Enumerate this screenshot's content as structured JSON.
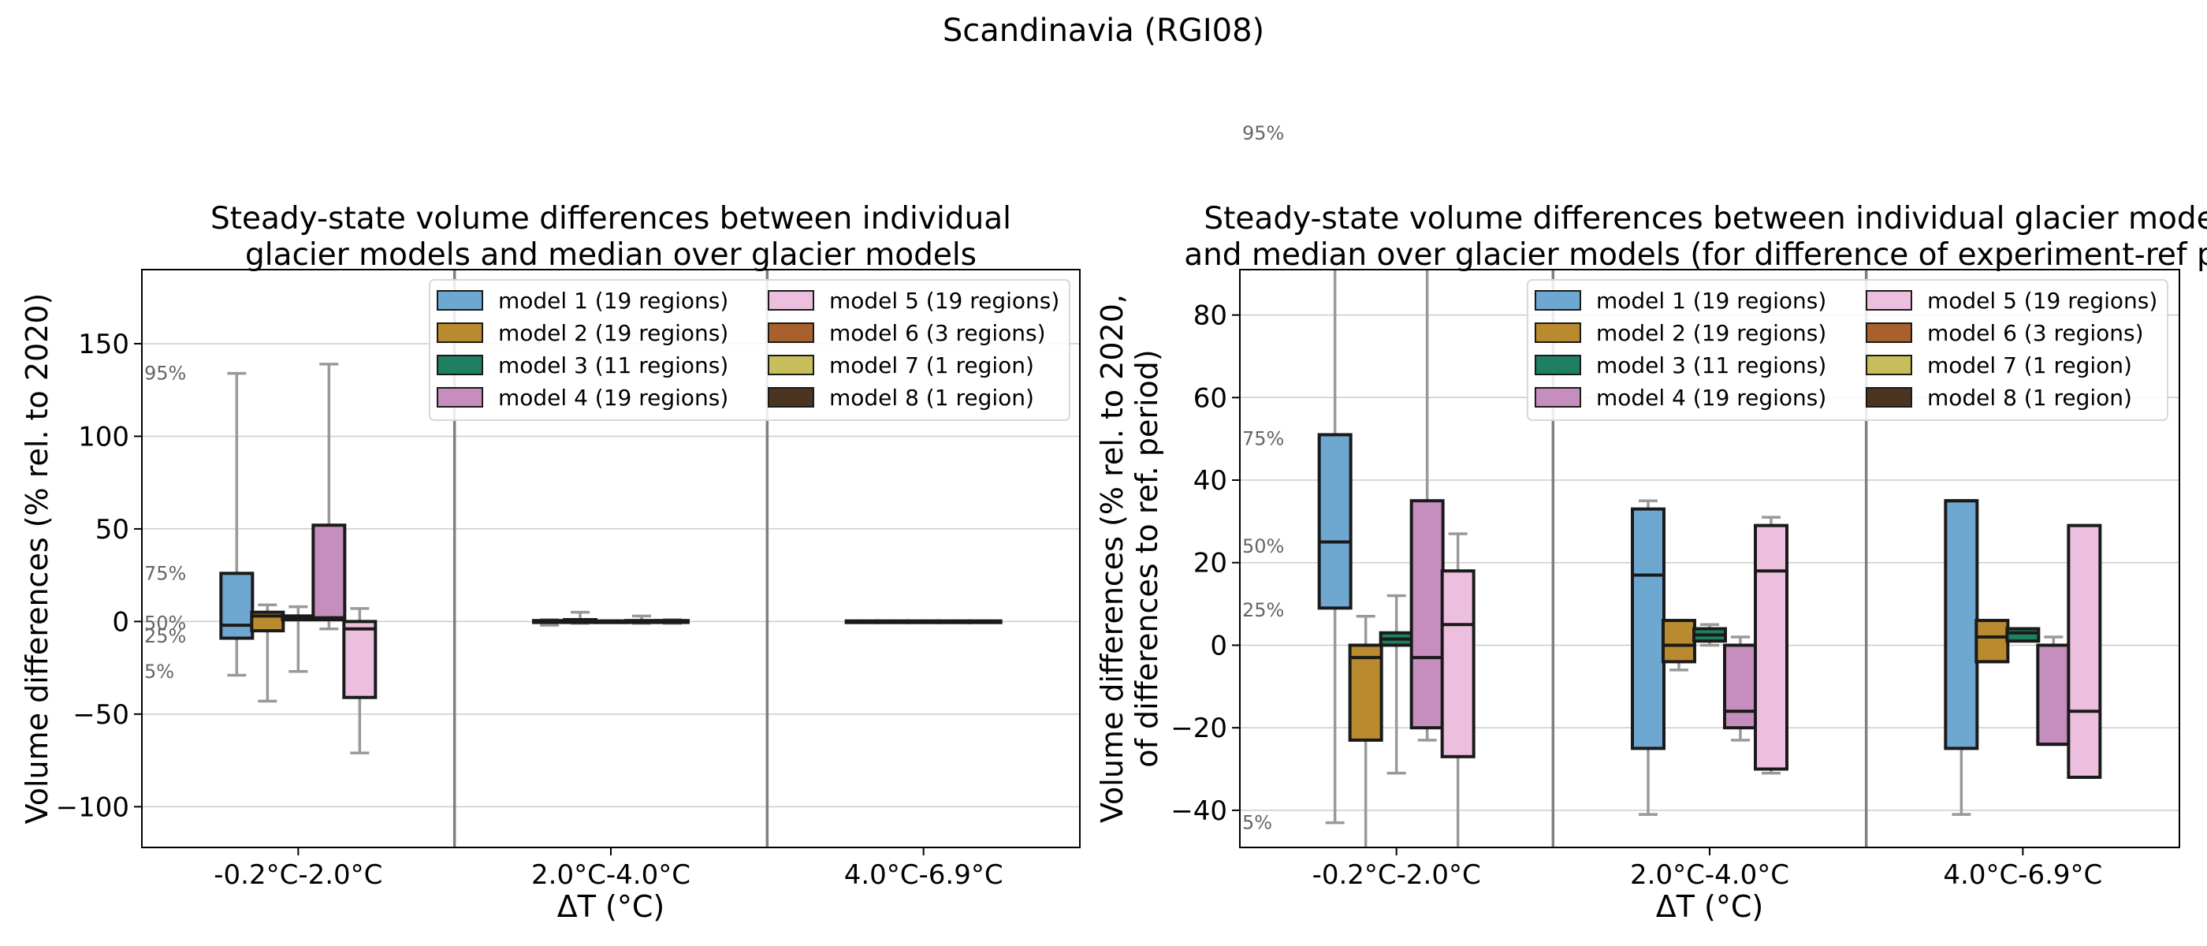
{
  "figure_title": "Scandinavia (RGI08)",
  "colors": {
    "model 1": "#6ea7d0",
    "model 2": "#b98a2e",
    "model 3": "#1f7f62",
    "model 4": "#c68ebf",
    "model 5": "#ecbfde",
    "model 6": "#a8602c",
    "model 7": "#c7bd5a",
    "model 8": "#4b3521",
    "median_line": "#1a1a1a",
    "whisker": "#999999",
    "separator": "#808080",
    "grid": "#cccccc",
    "percentile_text": "#666666"
  },
  "legend_entries": [
    "model 1 (19 regions)",
    "model 2 (19 regions)",
    "model 3 (11 regions)",
    "model 4 (19 regions)",
    "model 5 (19 regions)",
    "model 6 (3 regions)",
    "model 7 (1 region)",
    "model 8 (1 region)"
  ],
  "chart_data": [
    {
      "type": "box",
      "title": "Steady-state volume differences between individual\nglacier models and median over glacier models",
      "xlabel": "ΔT (°C)",
      "ylabel": "Volume differences (% rel. to 2020)",
      "ylim": [
        -122,
        190
      ],
      "yticks": [
        -100,
        -50,
        0,
        50,
        100,
        150
      ],
      "grid": true,
      "legend_placement": "top-right",
      "categories": [
        "-0.2°C-2.0°C",
        "2.0°C-4.0°C",
        "4.0°C-6.9°C"
      ],
      "percentile_labels": [
        {
          "text": "95%",
          "y": 134
        },
        {
          "text": "75%",
          "y": 26
        },
        {
          "text": "50%",
          "y": -1
        },
        {
          "text": "25%",
          "y": -8
        },
        {
          "text": "5%",
          "y": -27
        }
      ],
      "boxes": [
        {
          "category": 0,
          "model": "model 1",
          "q1": -9,
          "median": -2,
          "q3": 26,
          "low": -29,
          "high": 134
        },
        {
          "category": 0,
          "model": "model 2",
          "q1": -5,
          "median": 3,
          "q3": 5,
          "low": -43,
          "high": 9
        },
        {
          "category": 0,
          "model": "model 3",
          "q1": 1,
          "median": 2,
          "q3": 3,
          "low": -27,
          "high": 8
        },
        {
          "category": 0,
          "model": "model 4",
          "q1": 1,
          "median": 2,
          "q3": 52,
          "low": -4,
          "high": 139
        },
        {
          "category": 0,
          "model": "model 5",
          "q1": -41,
          "median": -4,
          "q3": 0,
          "low": -71,
          "high": 7
        },
        {
          "category": 1,
          "model": "model 1",
          "q1": -0.5,
          "median": 0,
          "q3": 0.5,
          "low": -2,
          "high": 1
        },
        {
          "category": 1,
          "model": "model 2",
          "q1": -0.5,
          "median": 0,
          "q3": 1,
          "low": -1,
          "high": 5
        },
        {
          "category": 1,
          "model": "model 3",
          "q1": -0.3,
          "median": 0,
          "q3": 0.3,
          "low": -0.5,
          "high": 0.5
        },
        {
          "category": 1,
          "model": "model 4",
          "q1": -0.5,
          "median": 0,
          "q3": 0.5,
          "low": -1,
          "high": 3
        },
        {
          "category": 1,
          "model": "model 5",
          "q1": -0.5,
          "median": 0,
          "q3": 0.5,
          "low": -1,
          "high": 1
        },
        {
          "category": 2,
          "model": "model 1",
          "q1": -0.3,
          "median": 0,
          "q3": 0.3,
          "low": -0.3,
          "high": 0.3
        },
        {
          "category": 2,
          "model": "model 2",
          "q1": -0.3,
          "median": 0,
          "q3": 0.3,
          "low": -0.3,
          "high": 0.3
        },
        {
          "category": 2,
          "model": "model 3",
          "q1": -0.3,
          "median": 0,
          "q3": 0.3,
          "low": -0.3,
          "high": 0.3
        },
        {
          "category": 2,
          "model": "model 4",
          "q1": -0.3,
          "median": 0,
          "q3": 0.3,
          "low": -0.3,
          "high": 0.3
        },
        {
          "category": 2,
          "model": "model 5",
          "q1": -0.3,
          "median": 0,
          "q3": 0.3,
          "low": -0.3,
          "high": 0.3
        }
      ]
    },
    {
      "type": "box",
      "title": "Steady-state volume differences between individual glacier mode\nand median over glacier models (for difference of experiment-ref pe",
      "xlabel": "ΔT (°C)",
      "ylabel": "Volume differences (% rel. to 2020,\nof differences to ref. period)",
      "ylim": [
        -49,
        91
      ],
      "yticks": [
        -40,
        -20,
        0,
        20,
        40,
        60,
        80
      ],
      "grid": true,
      "legend_placement": "top-right",
      "categories": [
        "-0.2°C-2.0°C",
        "2.0°C-4.0°C",
        "4.0°C-6.9°C"
      ],
      "percentile_labels": [
        {
          "text": "95%",
          "y": 124
        },
        {
          "text": "75%",
          "y": 50
        },
        {
          "text": "50%",
          "y": 24
        },
        {
          "text": "25%",
          "y": 8.5
        },
        {
          "text": "5%",
          "y": -43
        }
      ],
      "boxes": [
        {
          "category": 0,
          "model": "model 1",
          "q1": 9,
          "median": 25,
          "q3": 51,
          "low": -43,
          "high": 123
        },
        {
          "category": 0,
          "model": "model 2",
          "q1": -23,
          "median": -3,
          "q3": 0,
          "low": -62,
          "high": 7
        },
        {
          "category": 0,
          "model": "model 3",
          "q1": 0,
          "median": 1.5,
          "q3": 3,
          "low": -31,
          "high": 12
        },
        {
          "category": 0,
          "model": "model 4",
          "q1": -20,
          "median": -3,
          "q3": 35,
          "low": -23,
          "high": 115
        },
        {
          "category": 0,
          "model": "model 5",
          "q1": -27,
          "median": 5,
          "q3": 18,
          "low": -58,
          "high": 27
        },
        {
          "category": 1,
          "model": "model 1",
          "q1": -25,
          "median": 17,
          "q3": 33,
          "low": -41,
          "high": 35
        },
        {
          "category": 1,
          "model": "model 2",
          "q1": -4,
          "median": 0,
          "q3": 6,
          "low": -6,
          "high": 6
        },
        {
          "category": 1,
          "model": "model 3",
          "q1": 1,
          "median": 2.5,
          "q3": 4,
          "low": 0,
          "high": 5
        },
        {
          "category": 1,
          "model": "model 4",
          "q1": -20,
          "median": -16,
          "q3": 0,
          "low": -23,
          "high": 2
        },
        {
          "category": 1,
          "model": "model 5",
          "q1": -30,
          "median": 18,
          "q3": 29,
          "low": -31,
          "high": 31
        },
        {
          "category": 2,
          "model": "model 1",
          "q1": -25,
          "median": 35,
          "q3": 35,
          "low": -41,
          "high": 35
        },
        {
          "category": 2,
          "model": "model 2",
          "q1": -4,
          "median": 2,
          "q3": 6,
          "low": -4,
          "high": 6
        },
        {
          "category": 2,
          "model": "model 3",
          "q1": 1,
          "median": 3,
          "q3": 4,
          "low": 1,
          "high": 4
        },
        {
          "category": 2,
          "model": "model 4",
          "q1": -24,
          "median": -24,
          "q3": 0,
          "low": -24,
          "high": 2
        },
        {
          "category": 2,
          "model": "model 5",
          "q1": -32,
          "median": -16,
          "q3": 29,
          "low": -32,
          "high": 29
        }
      ]
    }
  ]
}
